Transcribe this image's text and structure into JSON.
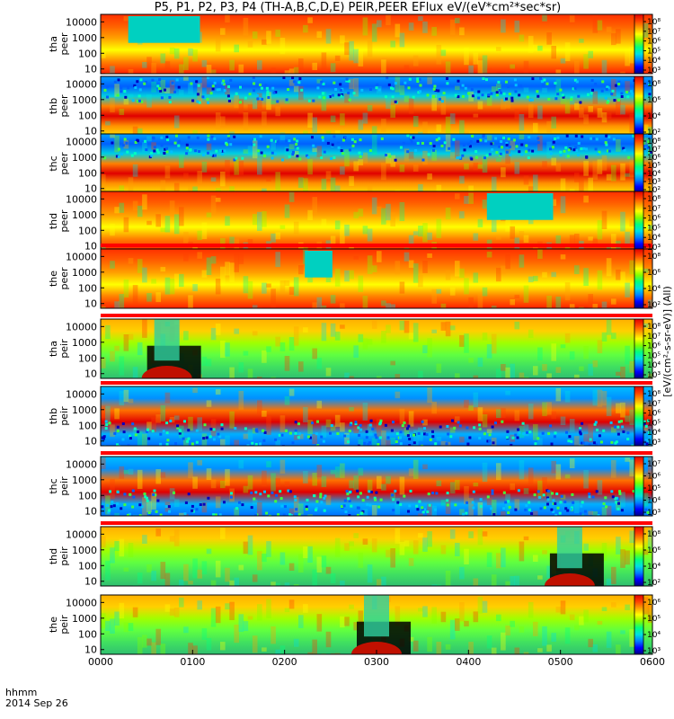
{
  "chart_data": {
    "type": "heatmap",
    "title": "P5, P1, P2, P3, P4 (TH-A,B,C,D,E) PEIR,PEER EFlux eV/(eV*cm²*sec*sr)",
    "date_label": "2014 Sep 26",
    "time_label": "hhmm",
    "x_ticks": [
      "0000",
      "0100",
      "0200",
      "0300",
      "0400",
      "0500",
      "0600"
    ],
    "y_scale": "log",
    "ylim": [
      5,
      30000
    ],
    "y_ticks": [
      "10000",
      "1000",
      "100",
      "10"
    ],
    "colorbar_label": "[eV/(cm²-s-sr-eV)] (All)",
    "colormap": [
      "#000080",
      "#0000ff",
      "#0080ff",
      "#00e0e0",
      "#00ff80",
      "#80ff00",
      "#ffff00",
      "#ffa000",
      "#ff4000",
      "#e00000"
    ],
    "panels": [
      {
        "probe": "tha",
        "species": "peer",
        "label": [
          "tha",
          "peer"
        ],
        "cbar_ticks": [
          "10⁸",
          "10⁷",
          "10⁶",
          "10⁵",
          "10⁴",
          "10³"
        ],
        "ribbon": false
      },
      {
        "probe": "thb",
        "species": "peer",
        "label": [
          "thb",
          "peer"
        ],
        "cbar_ticks": [
          "10⁸",
          "10⁶",
          "10⁴",
          "10²"
        ],
        "ribbon": false
      },
      {
        "probe": "thc",
        "species": "peer",
        "label": [
          "thc",
          "peer"
        ],
        "cbar_ticks": [
          "10⁸",
          "10⁷",
          "10⁶",
          "10⁵",
          "10⁴",
          "10³",
          "10²"
        ],
        "ribbon": false
      },
      {
        "probe": "thd",
        "species": "peer",
        "label": [
          "thd",
          "peer"
        ],
        "cbar_ticks": [
          "10⁸",
          "10⁷",
          "10⁶",
          "10⁵",
          "10⁴",
          "10³"
        ],
        "ribbon": false
      },
      {
        "probe": "the",
        "species": "peer",
        "label": [
          "the",
          "peer"
        ],
        "cbar_ticks": [
          "10⁸",
          "10⁶",
          "10⁴",
          "10²"
        ],
        "ribbon": true
      },
      {
        "probe": "tha",
        "species": "peir",
        "label": [
          "tha",
          "peir"
        ],
        "cbar_ticks": [
          "10⁸",
          "10⁷",
          "10⁶",
          "10⁵",
          "10⁴",
          "10³"
        ],
        "ribbon": true
      },
      {
        "probe": "thb",
        "species": "peir",
        "label": [
          "thb",
          "peir"
        ],
        "cbar_ticks": [
          "10⁸",
          "10⁷",
          "10⁶",
          "10⁵",
          "10⁴",
          "10³"
        ],
        "ribbon": true
      },
      {
        "probe": "thc",
        "species": "peir",
        "label": [
          "thc",
          "peir"
        ],
        "cbar_ticks": [
          "10⁷",
          "10⁶",
          "10⁵",
          "10⁴",
          "10³"
        ],
        "ribbon": true
      },
      {
        "probe": "thd",
        "species": "peir",
        "label": [
          "thd",
          "peir"
        ],
        "cbar_ticks": [
          "10⁸",
          "10⁶",
          "10⁴",
          "10²"
        ],
        "ribbon": true
      },
      {
        "probe": "the",
        "species": "peir",
        "label": [
          "the",
          "peir"
        ],
        "cbar_ticks": [
          "10⁶",
          "10⁵",
          "10⁴",
          "10³"
        ],
        "ribbon": false
      }
    ]
  }
}
